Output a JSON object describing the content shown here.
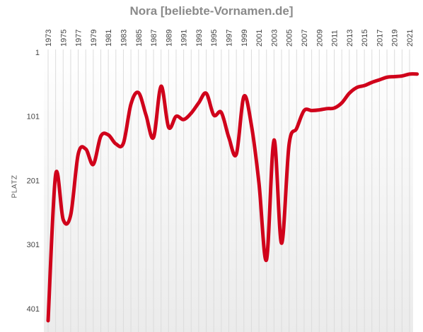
{
  "chart_data": {
    "type": "line",
    "title": "Nora [beliebte-Vornamen.de]",
    "ylabel": "PLATZ",
    "xlabel": "",
    "y_inverted": true,
    "ylim": [
      1,
      420
    ],
    "yticks": [
      1,
      101,
      201,
      301,
      401
    ],
    "xlim": [
      1973,
      2022
    ],
    "xtick_labels": [
      "1973",
      "1975",
      "1977",
      "1979",
      "1981",
      "1983",
      "1985",
      "1987",
      "1989",
      "1991",
      "1993",
      "1995",
      "1997",
      "1999",
      "2001",
      "2003",
      "2005",
      "2007",
      "2009",
      "2011",
      "2013",
      "2015",
      "2017",
      "2019",
      "2021"
    ],
    "grid": "vertical",
    "series_color": "#d0021b",
    "series": [
      {
        "x": [
          1973,
          1974,
          1975,
          1976,
          1977,
          1978,
          1979,
          1980,
          1981,
          1982,
          1983,
          1984,
          1985,
          1986,
          1987,
          1988,
          1989,
          1990,
          1991,
          1992,
          1993,
          1994,
          1995,
          1996,
          1997,
          1998,
          1999,
          2000,
          2001,
          2002,
          2003,
          2004,
          2005,
          2006,
          2007,
          2008,
          2009,
          2010,
          2011,
          2012,
          2013,
          2014,
          2015,
          2016,
          2017,
          2018,
          2019,
          2020,
          2021,
          2022
        ],
        "values": [
          420,
          192,
          262,
          255,
          160,
          152,
          176,
          132,
          130,
          144,
          143,
          82,
          64,
          99,
          134,
          54,
          118,
          101,
          106,
          96,
          80,
          65,
          99,
          95,
          134,
          160,
          70,
          115,
          205,
          325,
          138,
          299,
          145,
          120,
          92,
          92,
          91,
          89,
          88,
          80,
          65,
          56,
          53,
          48,
          44,
          40,
          39,
          38,
          35,
          35
        ]
      }
    ]
  }
}
